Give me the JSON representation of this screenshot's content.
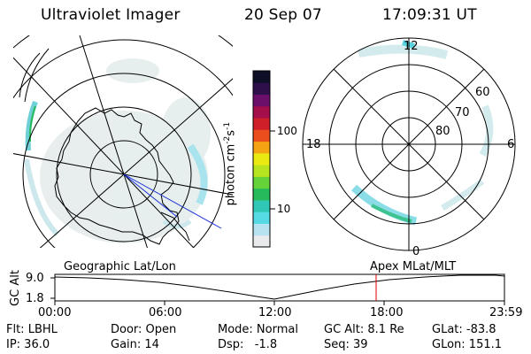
{
  "header": {
    "title": "Ultraviolet Imager",
    "date": "20 Sep 07",
    "time": "17:09:31 UT"
  },
  "colorbar": {
    "label": "photon cm^-2 s^-1",
    "label_parts": {
      "base": "photon cm",
      "exp1": "-2",
      "s": "s",
      "exp2": "-1"
    },
    "ticks": [
      "100",
      "10"
    ],
    "colors": [
      "#e8eaee",
      "#b6e3ef",
      "#56dbe4",
      "#31c7b5",
      "#27ba5a",
      "#66d23a",
      "#b8e31f",
      "#eaea12",
      "#f4a312",
      "#ea4e1d",
      "#cf1f28",
      "#a40f4b",
      "#6c0f6a",
      "#2f0f4a",
      "#0e0f26"
    ]
  },
  "polar_plot": {
    "mlt_labels": [
      "12",
      "18",
      "6",
      "0"
    ],
    "lat_labels": [
      "60",
      "70",
      "80"
    ]
  },
  "timeline": {
    "left_title": "Geographic Lat/Lon",
    "right_title": "Apex MLat/MLT",
    "ylabel": "GC Alt",
    "y_ticks": [
      "9.0",
      "1.8"
    ],
    "x_ticks": [
      "00:00",
      "06:00",
      "12:00",
      "18:00",
      "23:59"
    ],
    "marker_time": "17:09",
    "marker_color": "#e00000"
  },
  "metadata": {
    "row1": {
      "flt": "Flt: LBHL",
      "door": "Door: Open",
      "mode": "Mode: Normal",
      "gcalt": "GC Alt: 8.1 Re",
      "glat": "GLat: -83.8"
    },
    "row2": {
      "ip": "IP: 36.0",
      "gain": "Gain: 14",
      "dsp": "Dsp:   -1.8",
      "seq": "Seq: 39",
      "glon": "GLon: 151.1"
    }
  }
}
